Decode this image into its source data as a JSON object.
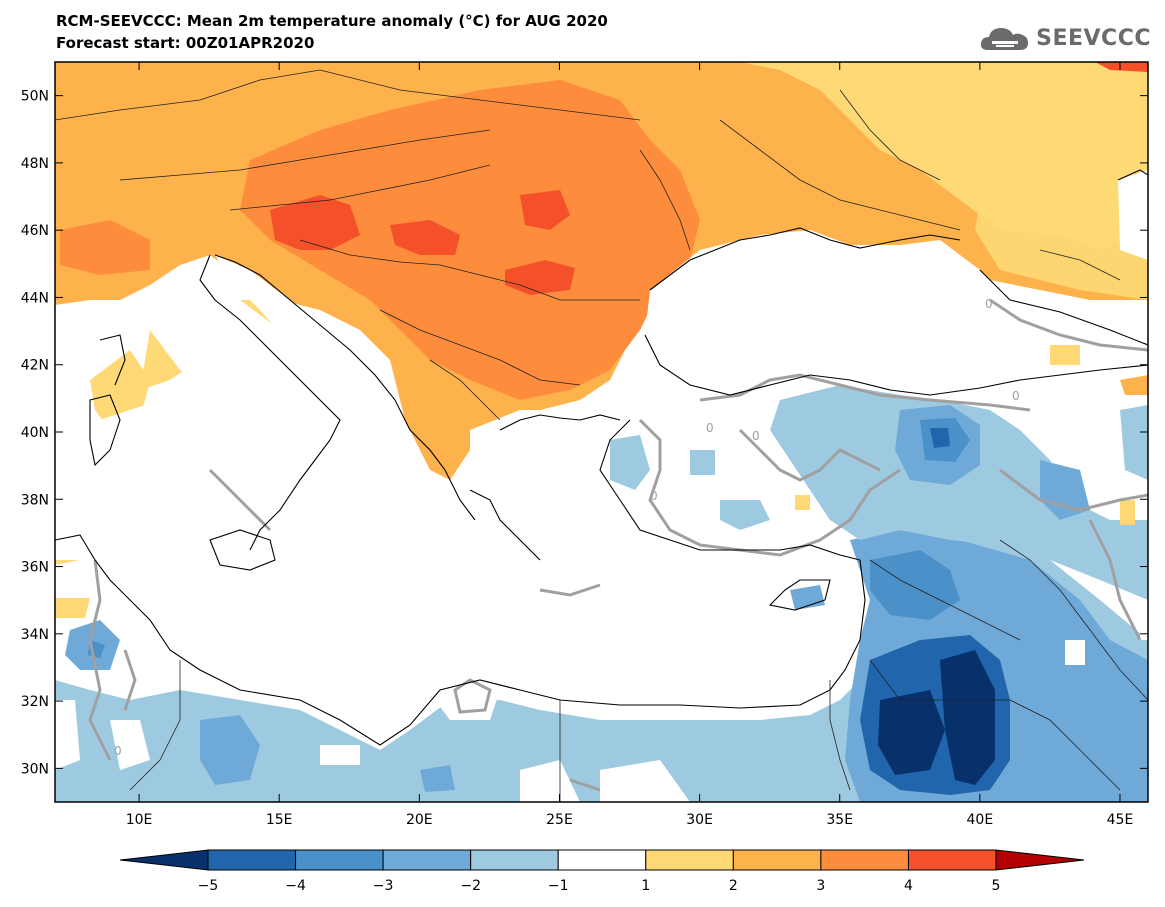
{
  "header": {
    "title": "RCM-SEEVCCC: Mean 2m temperature anomaly (°C) for AUG 2020",
    "subtitle": "Forecast start: 00Z01APR2020",
    "logo_text": "SEEVCCC",
    "logo_icon": "cloud-logo-icon"
  },
  "map": {
    "lon_range": [
      7,
      46
    ],
    "lat_range": [
      29,
      51
    ],
    "x_ticks": [
      "10E",
      "15E",
      "20E",
      "25E",
      "30E",
      "35E",
      "40E",
      "45E"
    ],
    "y_ticks": [
      "30N",
      "32N",
      "34N",
      "36N",
      "38N",
      "40N",
      "42N",
      "44N",
      "46N",
      "48N",
      "50N"
    ],
    "contour_label": "0"
  },
  "colorbar": {
    "labels": [
      "−5",
      "−4",
      "−3",
      "−2",
      "−1",
      "1",
      "2",
      "3",
      "4",
      "5"
    ],
    "colors": [
      "#08306b",
      "#2166ac",
      "#4a90c9",
      "#6fa9d8",
      "#9ecae1",
      "#ffffff",
      "#fed976",
      "#feb24c",
      "#fd8d3c",
      "#f4512a",
      "#d7191c",
      "#b30000"
    ]
  },
  "legend_colors": {
    "land_white": "#ffffff",
    "coast": "#000000",
    "contour": "#a0a0a0"
  }
}
